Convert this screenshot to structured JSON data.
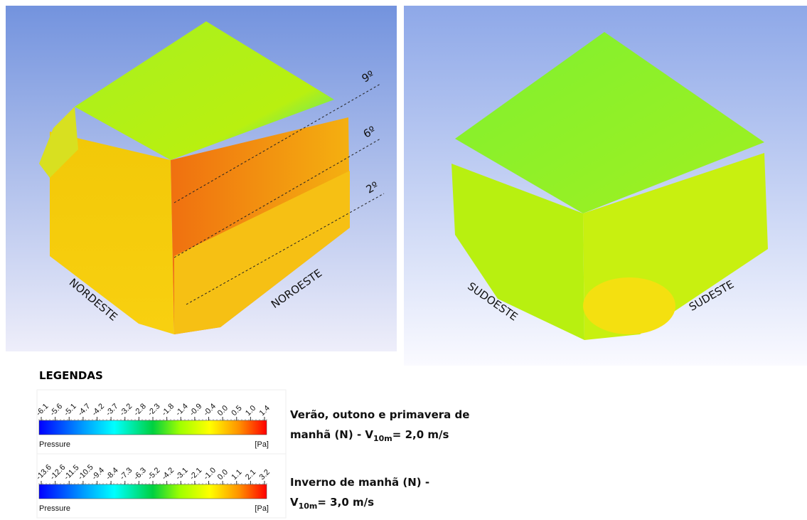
{
  "panels": [
    {
      "labels": [
        "NORDESTE",
        "NOROESTE"
      ],
      "floors": [
        "9º",
        "6º",
        "2º"
      ]
    },
    {
      "labels": [
        "SUDOESTE",
        "SUDESTE"
      ]
    }
  ],
  "legend": {
    "heading": "LEGENDAS",
    "colorbars": [
      {
        "ticks": [
          "-6.1",
          "-5.6",
          "-5.1",
          "-4.7",
          "-4.2",
          "-3.7",
          "-3.2",
          "-2.8",
          "-2.3",
          "-1.8",
          "-1.4",
          "-0.9",
          "-0.4",
          "0.0",
          "0.5",
          "1.0",
          "1.4"
        ],
        "variable": "Pressure",
        "unit": "[Pa]",
        "caption": [
          "Verão, outono e primavera de",
          "manhã (N) - V",
          "10m",
          "= 2,0 m/s"
        ]
      },
      {
        "ticks": [
          "-13.6",
          "-12.6",
          "-11.5",
          "-10.5",
          "-9.4",
          "-8.4",
          "-7.3",
          "-6.3",
          "-5.2",
          "-4.2",
          "-3.1",
          "-2.1",
          "-1.0",
          "0.0",
          "1.1",
          "2.1",
          "3.2"
        ],
        "variable": "Pressure",
        "unit": "[Pa]",
        "caption": [
          "Inverno de manhã (N) -",
          "V",
          "10m",
          "= 3,0 m/s"
        ]
      }
    ]
  }
}
